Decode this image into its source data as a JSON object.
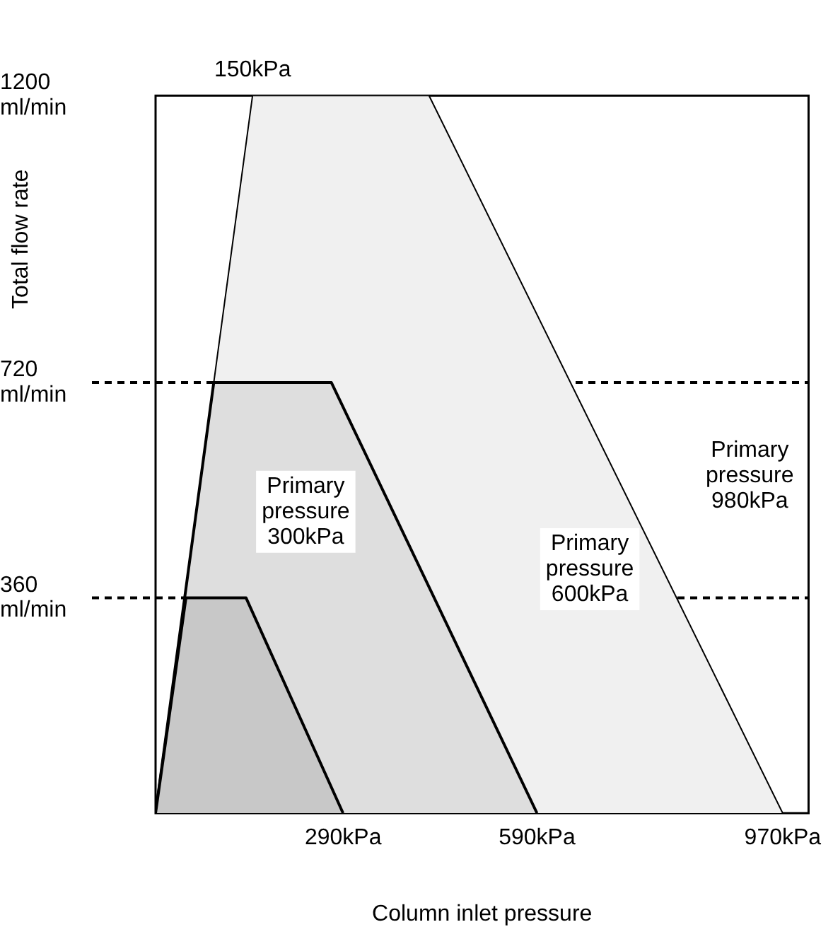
{
  "chart_data": {
    "type": "area",
    "xlabel": "Column inlet pressure",
    "ylabel": "Total flow rate",
    "xlim": [
      0,
      1010
    ],
    "ylim": [
      0,
      1200
    ],
    "xticks": [
      {
        "value": 290,
        "label": "290kPa"
      },
      {
        "value": 590,
        "label": "590kPa"
      },
      {
        "value": 970,
        "label": "970kPa"
      }
    ],
    "yticks": [
      {
        "value": 360,
        "label": "360 ml/min"
      },
      {
        "value": 720,
        "label": "720 ml/min"
      },
      {
        "value": 1200,
        "label": "1200 ml/min"
      }
    ],
    "series": [
      {
        "color": "#f0f0f0",
        "x": [
          0,
          150,
          423,
          970
        ],
        "values": [
          0,
          1200,
          1200,
          0
        ]
      },
      {
        "color": "#dedede",
        "x": [
          0,
          90,
          272,
          590
        ],
        "values": [
          0,
          720,
          720,
          0
        ]
      },
      {
        "color": "#c8c8c8",
        "x": [
          0,
          47,
          140,
          290
        ],
        "values": [
          0,
          360,
          360,
          0
        ]
      }
    ],
    "ref_lines": [
      {
        "axis": "y",
        "value": 720,
        "line_style": "dashed"
      },
      {
        "axis": "y",
        "value": 360,
        "line_style": "dashed"
      }
    ],
    "annotations": [
      {
        "text": "150kPa",
        "x": 150,
        "y": 1200
      },
      "Primary pressure 300kPa",
      "Primary pressure 600kPa",
      "Primary pressure 980kPa"
    ],
    "grid": false,
    "legend": false,
    "stacked": false
  }
}
